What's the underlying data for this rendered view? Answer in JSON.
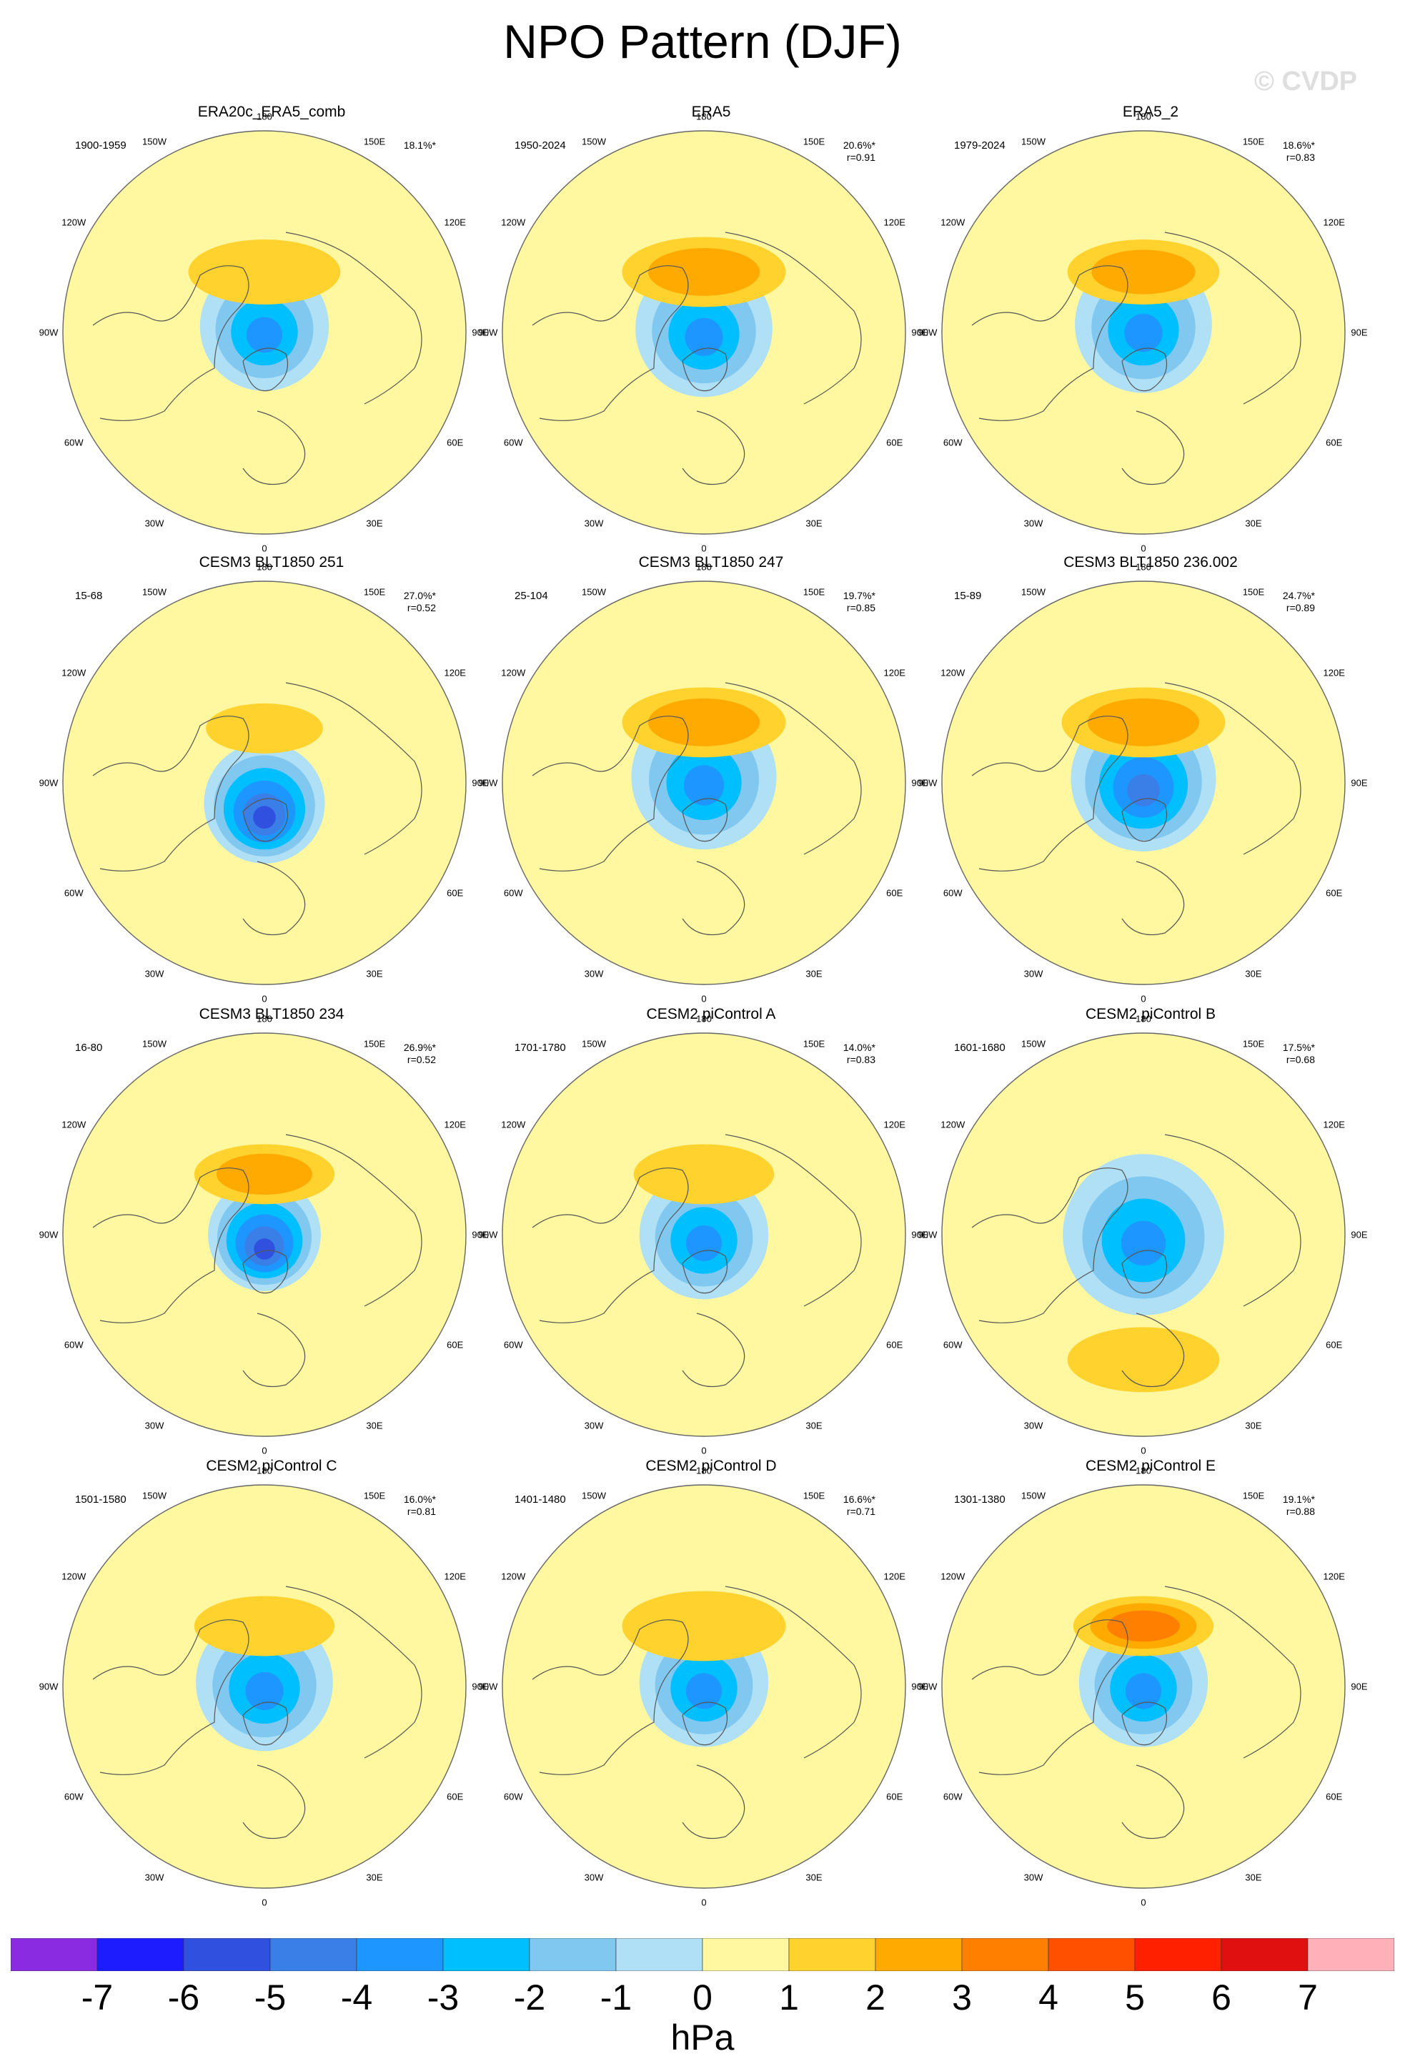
{
  "title": "NPO Pattern (DJF)",
  "watermark": "© CVDP",
  "lon_labels": [
    "180",
    "150E",
    "120E",
    "90E",
    "60E",
    "30E",
    "0",
    "30W",
    "60W",
    "90W",
    "120W",
    "150W"
  ],
  "colors": {
    "neg7": "#8a2be2",
    "neg6": "#1c1cff",
    "neg5": "#3050e0",
    "neg4": "#3a7ee8",
    "neg3": "#1e96ff",
    "neg2": "#00bfff",
    "neg1": "#80c8f0",
    "neg0": "#b0e0f5",
    "pos0": "#fff8a0",
    "pos1": "#ffd22e",
    "pos2": "#ffaa00",
    "pos3": "#ff7f00",
    "pos4": "#ff5000",
    "pos5": "#ff2000",
    "pos6": "#e01010",
    "pos7": "#ffb0b8",
    "coast": "#555555",
    "edge": "#666666"
  },
  "colorbar": {
    "colors": [
      "#8a2be2",
      "#1c1cff",
      "#3050e0",
      "#3a7ee8",
      "#1e96ff",
      "#00bfff",
      "#80c8f0",
      "#b0e0f5",
      "#fff8a0",
      "#ffd22e",
      "#ffaa00",
      "#ff7f00",
      "#ff5000",
      "#ff2000",
      "#e01010",
      "#ffb0b8"
    ],
    "ticks": [
      "-7",
      "-6",
      "-5",
      "-4",
      "-3",
      "-2",
      "-1",
      "0",
      "1",
      "2",
      "3",
      "4",
      "5",
      "6",
      "7"
    ],
    "units": "hPa"
  },
  "panels": [
    {
      "title": "ERA20c_ERA5_comb",
      "years": "1900-1959",
      "pct": "18.1%*",
      "r": "",
      "pos": {
        "v": 1.6,
        "a": 0.3,
        "w": 0.26
      },
      "neg": {
        "v": -3.2,
        "a": 0.03,
        "w": 0.32
      }
    },
    {
      "title": "ERA5",
      "years": "1950-2024",
      "pct": "20.6%*",
      "r": "r=0.91",
      "pos": {
        "v": 2.4,
        "a": 0.3,
        "w": 0.28
      },
      "neg": {
        "v": -3.3,
        "a": 0.02,
        "w": 0.34
      }
    },
    {
      "title": "ERA5_2",
      "years": "1979-2024",
      "pct": "18.6%*",
      "r": "r=0.83",
      "pos": {
        "v": 2.1,
        "a": 0.3,
        "w": 0.26
      },
      "neg": {
        "v": -3.0,
        "a": 0.04,
        "w": 0.34
      }
    },
    {
      "title": "CESM3 BLT1850 251",
      "years": "15-68",
      "pct": "27.0%*",
      "r": "r=0.52",
      "pos": {
        "v": 1.8,
        "a": 0.27,
        "w": 0.2
      },
      "neg": {
        "v": -5.5,
        "a": -0.1,
        "w": 0.3
      }
    },
    {
      "title": "CESM3 BLT1850 247",
      "years": "25-104",
      "pct": "19.7%*",
      "r": "r=0.85",
      "pos": {
        "v": 2.5,
        "a": 0.3,
        "w": 0.28
      },
      "neg": {
        "v": -3.6,
        "a": 0.03,
        "w": 0.36
      }
    },
    {
      "title": "CESM3 BLT1850 236.002",
      "years": "15-89",
      "pct": "24.7%*",
      "r": "r=0.89",
      "pos": {
        "v": 2.6,
        "a": 0.3,
        "w": 0.28
      },
      "neg": {
        "v": -4.2,
        "a": 0.02,
        "w": 0.36
      }
    },
    {
      "title": "CESM3 BLT1850 234",
      "years": "16-80",
      "pct": "26.9%*",
      "r": "r=0.52",
      "pos": {
        "v": 2.4,
        "a": 0.3,
        "w": 0.24
      },
      "neg": {
        "v": -5.3,
        "a": 0.0,
        "w": 0.28
      }
    },
    {
      "title": "CESM2 piControl A",
      "years": "1701-1780",
      "pct": "14.0%*",
      "r": "r=0.83",
      "pos": {
        "v": 1.5,
        "a": 0.3,
        "w": 0.24
      },
      "neg": {
        "v": -3.4,
        "a": 0.0,
        "w": 0.32
      }
    },
    {
      "title": "CESM2 piControl B",
      "years": "1601-1680",
      "pct": "17.5%*",
      "r": "r=0.68",
      "pos": {
        "v": 1.4,
        "a": -0.62,
        "w": 0.26
      },
      "neg": {
        "v": -3.8,
        "a": 0.0,
        "w": 0.4
      }
    },
    {
      "title": "CESM2 piControl C",
      "years": "1501-1580",
      "pct": "16.0%*",
      "r": "r=0.81",
      "pos": {
        "v": 1.6,
        "a": 0.3,
        "w": 0.24
      },
      "neg": {
        "v": -3.1,
        "a": 0.02,
        "w": 0.34
      }
    },
    {
      "title": "CESM2 piControl D",
      "years": "1401-1480",
      "pct": "16.6%*",
      "r": "r=0.71",
      "pos": {
        "v": 1.7,
        "a": 0.3,
        "w": 0.28
      },
      "neg": {
        "v": -3.5,
        "a": 0.02,
        "w": 0.32
      }
    },
    {
      "title": "CESM2 piControl E",
      "years": "1301-1380",
      "pct": "19.1%*",
      "r": "r=0.88",
      "pos": {
        "v": 3.2,
        "a": 0.3,
        "w": 0.24
      },
      "neg": {
        "v": -3.5,
        "a": 0.02,
        "w": 0.32
      }
    }
  ]
}
